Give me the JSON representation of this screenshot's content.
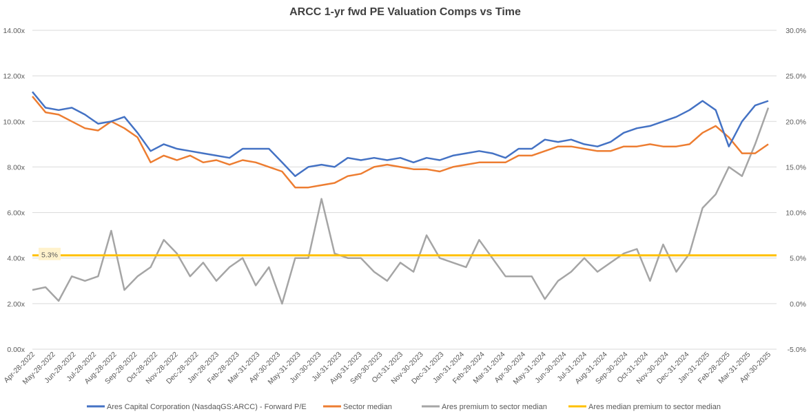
{
  "chart_data": {
    "type": "line",
    "title": "ARCC 1-yr fwd PE Valuation Comps vs Time",
    "y_left": {
      "min": 0,
      "max": 14,
      "step": 2,
      "ticks": [
        "0.00x",
        "2.00x",
        "4.00x",
        "6.00x",
        "8.00x",
        "10.00x",
        "12.00x",
        "14.00x"
      ]
    },
    "y_right": {
      "min": -5,
      "max": 30,
      "step": 5,
      "ticks": [
        "-5.0%",
        "0.0%",
        "5.0%",
        "10.0%",
        "15.0%",
        "20.0%",
        "25.0%",
        "30.0%"
      ]
    },
    "x_ticks": [
      "Apr-28-2022",
      "May-28-2022",
      "Jun-28-2022",
      "Jul-28-2022",
      "Aug-28-2022",
      "Sep-28-2022",
      "Oct-28-2022",
      "Nov-28-2022",
      "Dec-28-2022",
      "Jan-28-2023",
      "Feb-28-2023",
      "Mar-31-2023",
      "Apr-30-2023",
      "May-31-2023",
      "Jun-30-2023",
      "Jul-31-2023",
      "Aug-31-2023",
      "Sep-30-2023",
      "Oct-31-2023",
      "Nov-30-2023",
      "Dec-31-2023",
      "Jan-31-2024",
      "Feb-29-2024",
      "Mar-31-2024",
      "Apr-30-2024",
      "May-31-2024",
      "Jun-30-2024",
      "Jul-31-2024",
      "Aug-31-2024",
      "Sep-30-2024",
      "Oct-31-2024",
      "Nov-30-2024",
      "Dec-31-2024",
      "Jan-31-2025",
      "Feb-28-2025",
      "Mar-31-2025",
      "Apr-30-2025"
    ],
    "annotation": {
      "label": "5.3%",
      "value": 5.3,
      "axis": "right"
    },
    "series": [
      {
        "name": "Ares Capital Corporation (NasdaqGS:ARCC) - Forward P/E",
        "axis": "left",
        "color": "#4472c4",
        "values": [
          11.3,
          10.6,
          10.5,
          10.6,
          10.3,
          9.9,
          10.0,
          10.2,
          9.5,
          8.7,
          9.0,
          8.8,
          8.7,
          8.6,
          8.5,
          8.4,
          8.8,
          8.8,
          8.8,
          8.2,
          7.6,
          8.0,
          8.1,
          8.0,
          8.4,
          8.3,
          8.4,
          8.3,
          8.4,
          8.2,
          8.4,
          8.3,
          8.5,
          8.6,
          8.7,
          8.6,
          8.4,
          8.8,
          8.8,
          9.2,
          9.1,
          9.2,
          9.0,
          8.9,
          9.1,
          9.5,
          9.7,
          9.8,
          10.0,
          10.2,
          10.5,
          10.9,
          10.5,
          8.9,
          10.0,
          10.7,
          10.9
        ]
      },
      {
        "name": "Sector median",
        "axis": "left",
        "color": "#ed7d31",
        "values": [
          11.1,
          10.4,
          10.3,
          10.0,
          9.7,
          9.6,
          10.0,
          9.7,
          9.3,
          8.2,
          8.5,
          8.3,
          8.5,
          8.2,
          8.3,
          8.1,
          8.3,
          8.2,
          8.0,
          7.8,
          7.1,
          7.1,
          7.2,
          7.3,
          7.6,
          7.7,
          8.0,
          8.1,
          8.0,
          7.9,
          7.9,
          7.8,
          8.0,
          8.1,
          8.2,
          8.2,
          8.2,
          8.5,
          8.5,
          8.7,
          8.9,
          8.9,
          8.8,
          8.7,
          8.7,
          8.9,
          8.9,
          9.0,
          8.9,
          8.9,
          9.0,
          9.5,
          9.8,
          9.3,
          8.6,
          8.6,
          9.0
        ]
      },
      {
        "name": "Ares premium to sector median",
        "axis": "right",
        "color": "#a5a5a5",
        "values": [
          1.5,
          1.8,
          0.3,
          3.0,
          2.5,
          3.0,
          8.0,
          1.5,
          3.0,
          4.0,
          7.0,
          5.5,
          3.0,
          4.5,
          2.5,
          4.0,
          5.0,
          2.0,
          4.0,
          0.0,
          5.0,
          5.0,
          11.5,
          5.5,
          5.0,
          5.0,
          3.5,
          2.5,
          4.5,
          3.5,
          7.5,
          5.0,
          4.5,
          4.0,
          7.0,
          5.0,
          3.0,
          3.0,
          3.0,
          0.5,
          2.5,
          3.5,
          5.0,
          3.5,
          4.5,
          5.5,
          6.0,
          2.5,
          6.5,
          3.5,
          5.5,
          10.5,
          12.0,
          15.0,
          14.0,
          17.5,
          21.5
        ]
      },
      {
        "name": "Ares median premium to sector median",
        "axis": "right",
        "color": "#ffc000",
        "values": [
          5.3,
          5.3
        ]
      }
    ],
    "legend": "bottom"
  }
}
